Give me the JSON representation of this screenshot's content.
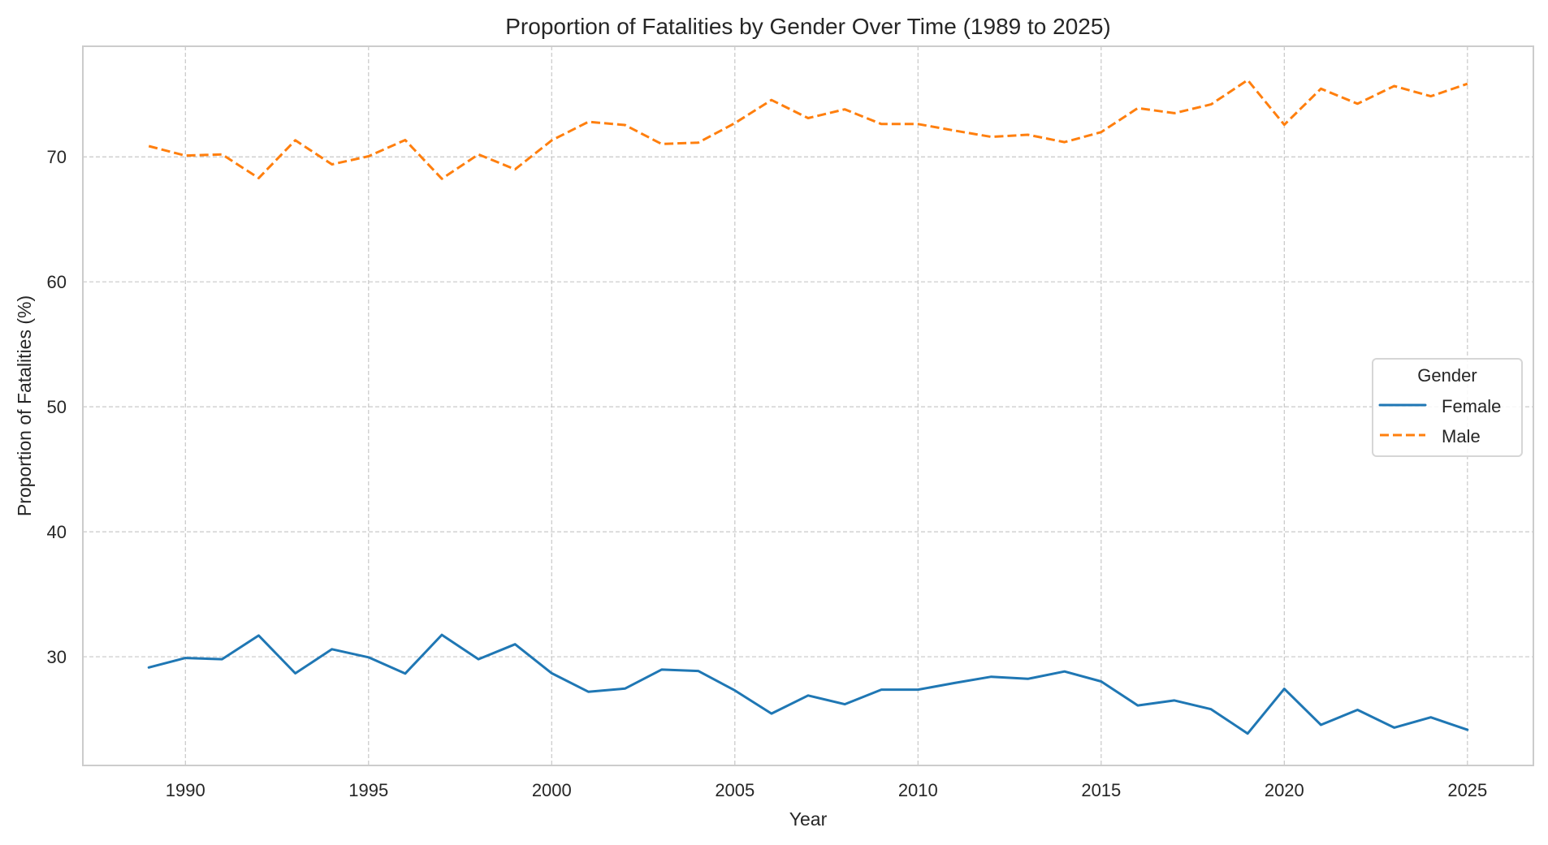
{
  "chart_data": {
    "type": "line",
    "title": "Proportion of Fatalities by Gender Over Time (1989 to 2025)",
    "xlabel": "Year",
    "ylabel": "Proportion of Fatalities (%)",
    "xlim": [
      1987.2,
      2026.8
    ],
    "ylim": [
      21.3,
      78.85
    ],
    "xticks": [
      1990,
      1995,
      2000,
      2005,
      2010,
      2015,
      2020,
      2025
    ],
    "yticks": [
      30,
      40,
      50,
      60,
      70
    ],
    "grid": true,
    "legend": {
      "title": "Gender",
      "placement": "center-right"
    },
    "x": [
      1989,
      1990,
      1991,
      1992,
      1993,
      1994,
      1995,
      1996,
      1997,
      1998,
      1999,
      2000,
      2001,
      2002,
      2003,
      2004,
      2005,
      2006,
      2007,
      2008,
      2009,
      2010,
      2011,
      2012,
      2013,
      2014,
      2015,
      2016,
      2017,
      2018,
      2019,
      2020,
      2021,
      2022,
      2023,
      2024,
      2025
    ],
    "series": [
      {
        "name": "Female",
        "color": "#1f77b4",
        "style": "solid",
        "values": [
          29.14,
          29.9,
          29.8,
          31.7,
          28.67,
          30.6,
          29.95,
          28.65,
          31.75,
          29.8,
          31.0,
          28.68,
          27.2,
          27.45,
          28.97,
          28.86,
          27.3,
          25.45,
          26.9,
          26.2,
          27.37,
          27.37,
          27.9,
          28.4,
          28.23,
          28.82,
          28.02,
          26.1,
          26.5,
          25.8,
          23.85,
          27.43,
          24.55,
          25.75,
          24.33,
          25.15,
          24.15
        ]
      },
      {
        "name": "Male",
        "color": "#ff7f0e",
        "style": "dashed",
        "values": [
          70.86,
          70.1,
          70.2,
          68.3,
          71.33,
          69.4,
          70.05,
          71.35,
          68.25,
          70.2,
          69.0,
          71.32,
          72.8,
          72.55,
          71.03,
          71.14,
          72.7,
          74.55,
          73.1,
          73.8,
          72.63,
          72.63,
          72.1,
          71.6,
          71.77,
          71.18,
          71.98,
          73.9,
          73.5,
          74.2,
          76.15,
          72.57,
          75.45,
          74.25,
          75.67,
          74.85,
          75.85
        ]
      }
    ]
  }
}
